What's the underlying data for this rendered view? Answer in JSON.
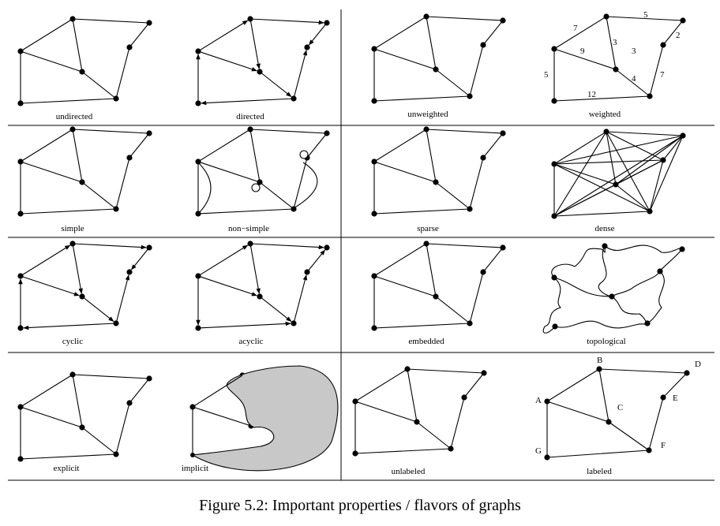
{
  "caption": "Figure 5.2: Important properties / flavors of graphs",
  "panels": {
    "undirected": "undirected",
    "directed": "directed",
    "unweighted": "unweighted",
    "weighted": "weighted",
    "simple": "simple",
    "non_simple": "non−simple",
    "sparse": "sparse",
    "dense": "dense",
    "cyclic": "cyclic",
    "acyclic": "acyclic",
    "embedded": "embedded",
    "topological": "topological",
    "explicit": "explicit",
    "implicit": "implicit",
    "unlabeled": "unlabeled",
    "labeled": "labeled"
  },
  "weights": [
    "7",
    "5",
    "2",
    "3",
    "9",
    "3",
    "4",
    "7",
    "5",
    "12"
  ],
  "vertex_labels": [
    "A",
    "B",
    "C",
    "D",
    "E",
    "F",
    "G"
  ],
  "colors": {
    "line": "#000000",
    "shaded_region": "#c8c8c8"
  }
}
